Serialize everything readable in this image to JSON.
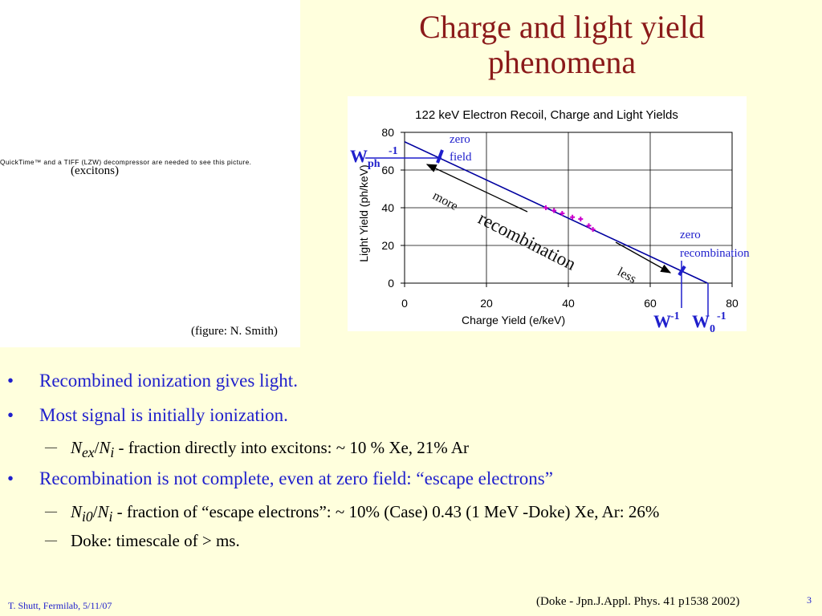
{
  "slide": {
    "title_line1": "Charge and light yield",
    "title_line2": "phenomena",
    "footer_left": "T. Shutt, Fermilab,  5/11/07",
    "footer_citation": "(Doke  - Jpn.J.Appl. Phys. 41 p1538 2002)",
    "page_number": "3"
  },
  "left_panel": {
    "quicktime_notice": "QuickTime™ and a TIFF (LZW) decompressor are needed to see this picture.",
    "excitons_label": "(excitons)",
    "figure_credit": "(figure: N. Smith)"
  },
  "chart_data": {
    "type": "scatter",
    "title": "122 keV Electron Recoil, Charge and Light Yields",
    "xlabel": "Charge Yield (e/keV)",
    "ylabel": "Light Yield (ph/keV)",
    "xlim": [
      0,
      80
    ],
    "ylim": [
      0,
      80
    ],
    "xticks": [
      "0",
      "20",
      "40",
      "60",
      "80"
    ],
    "yticks": [
      "0",
      "20",
      "40",
      "60",
      "80"
    ],
    "grid": true,
    "colors": {
      "line": "#0000a0",
      "points": "#cc00cc",
      "annotation": "#1f1fcc"
    },
    "line": {
      "x": [
        0,
        74
      ],
      "y": [
        75,
        0
      ]
    },
    "series": [
      {
        "x": [
          34.5,
          36.5,
          38.5,
          41,
          43,
          45,
          46
        ],
        "y": [
          40,
          38.5,
          37,
          35,
          34,
          30.5,
          28.5
        ]
      }
    ],
    "annotations": {
      "zero_field": [
        "zero",
        "field"
      ],
      "zero_recombination": [
        "zero",
        "recombination"
      ],
      "more": "more",
      "less": "less",
      "recombination": "recombination",
      "w_ph_main": "W",
      "w_ph_sub": "ph",
      "w_ph_sup": "-1",
      "w_main": "W",
      "w_sup": "-1",
      "w0_main": "W",
      "w0_sub": "0",
      "w0_sup": "-1"
    }
  },
  "bullets": [
    {
      "level": 1,
      "symbol": "•",
      "text": "Recombined ionization gives light."
    },
    {
      "level": 1,
      "symbol": "•",
      "text": "Most signal is initially ionization."
    },
    {
      "level": 2,
      "symbol": "—",
      "var1": "N",
      "sub1": "ex",
      "slash": "/",
      "var2": "N",
      "sub2": "i",
      "text": " - fraction directly into excitons:  ~ 10 % Xe, 21% Ar"
    },
    {
      "level": 1,
      "symbol": "•",
      "text": "Recombination is not complete, even at zero field:  “escape electrons”"
    },
    {
      "level": 2,
      "symbol": "—",
      "var1": "N",
      "sub1": "i0",
      "slash": "/",
      "var2": "N",
      "sub2": "i",
      "text": "  - fraction of “escape electrons”:  ~ 10% (Case) 0.43 (1 MeV -Doke) Xe,   Ar: 26%"
    },
    {
      "level": 2,
      "symbol": "—",
      "text": "Doke: timescale of > ms."
    }
  ]
}
